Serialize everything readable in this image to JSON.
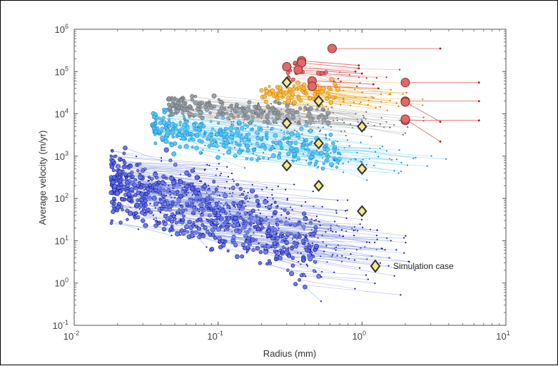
{
  "chart_data": {
    "type": "scatter",
    "title": "",
    "xlabel": "Radius (mm)",
    "ylabel": "Average velocity (m/yr)",
    "x_scale": "log",
    "y_scale": "log",
    "xlim": [
      0.01,
      10
    ],
    "ylim": [
      0.1,
      1000000
    ],
    "x_ticks": [
      {
        "value": 0.01,
        "base": "10",
        "exp": "-2"
      },
      {
        "value": 0.1,
        "base": "10",
        "exp": "-1"
      },
      {
        "value": 1,
        "base": "10",
        "exp": "0"
      },
      {
        "value": 10,
        "base": "10",
        "exp": "1"
      }
    ],
    "y_ticks": [
      {
        "value": 0.1,
        "base": "10",
        "exp": "-1"
      },
      {
        "value": 1,
        "base": "10",
        "exp": "0"
      },
      {
        "value": 10,
        "base": "10",
        "exp": "1"
      },
      {
        "value": 100,
        "base": "10",
        "exp": "2"
      },
      {
        "value": 1000,
        "base": "10",
        "exp": "3"
      },
      {
        "value": 10000,
        "base": "10",
        "exp": "4"
      },
      {
        "value": 100000,
        "base": "10",
        "exp": "5"
      },
      {
        "value": 1000000,
        "base": "10",
        "exp": "6"
      }
    ],
    "grid": false,
    "legend": {
      "position": "bottom-right",
      "entries": [
        {
          "label": "Simulation case",
          "marker": "diamond",
          "color": "#f2ea8c",
          "edge": "#333333"
        }
      ]
    },
    "point_clouds": [
      {
        "name": "blue",
        "color": "#1a1aa6",
        "fill": "#5a6fe0",
        "line": "#8f9ee8",
        "x_range": [
          0.018,
          0.5
        ],
        "logy_center_start": 2.4,
        "logy_slope": -1.1,
        "logy_spread": 1.2,
        "count": 700
      },
      {
        "name": "light-blue",
        "color": "#1d8fd6",
        "fill": "#4ec3f0",
        "line": "#7fd3f5",
        "x_range": [
          0.035,
          0.7
        ],
        "logy_center_start": 3.7,
        "logy_slope": -0.5,
        "logy_spread": 0.6,
        "count": 320
      },
      {
        "name": "gray",
        "color": "#6f6f6f",
        "fill": "#8a9aa6",
        "line": "#b0b0b0",
        "x_range": [
          0.045,
          0.6
        ],
        "logy_center_start": 4.2,
        "logy_slope": -0.2,
        "logy_spread": 0.4,
        "count": 200
      },
      {
        "name": "orange",
        "color": "#d97a00",
        "fill": "#f5c24a",
        "line": "#f0b030",
        "x_range": [
          0.2,
          0.7
        ],
        "logy_center_start": 4.5,
        "logy_slope": 0.0,
        "logy_spread": 0.35,
        "count": 90
      },
      {
        "name": "red",
        "color": "#9a2a2a",
        "fill": "#e26868",
        "line": "#e58a8a",
        "x_range": [
          0.3,
          0.6
        ],
        "logy_center_start": 5.0,
        "logy_slope": 0.0,
        "logy_spread": 0.3,
        "count": 18
      }
    ],
    "red_large_points": [
      {
        "x": 0.62,
        "y": 350000,
        "x_end": 3.5,
        "y_end": 350000
      },
      {
        "x": 0.38,
        "y": 180000,
        "x_end": 0.95,
        "y_end": 140000
      },
      {
        "x": 0.38,
        "y": 160000,
        "x_end": 0.95,
        "y_end": 120000
      },
      {
        "x": 0.3,
        "y": 130000,
        "x_end": 0.9,
        "y_end": 100000
      },
      {
        "x": 0.36,
        "y": 110000,
        "x_end": 1.0,
        "y_end": 90000
      },
      {
        "x": 0.45,
        "y": 60000,
        "x_end": 1.2,
        "y_end": 50000
      },
      {
        "x": 0.45,
        "y": 45000,
        "x_end": 1.3,
        "y_end": 40000
      },
      {
        "x": 2.0,
        "y": 55000,
        "x_end": 6.5,
        "y_end": 55000
      },
      {
        "x": 2.0,
        "y": 20000,
        "x_end": 6.5,
        "y_end": 20000
      },
      {
        "x": 2.0,
        "y": 19000,
        "x_end": 3.5,
        "y_end": 6500
      },
      {
        "x": 2.0,
        "y": 7000,
        "x_end": 6.5,
        "y_end": 7000
      },
      {
        "x": 2.0,
        "y": 7500,
        "x_end": 3.5,
        "y_end": 2200
      }
    ],
    "simulation_cases": [
      {
        "x": 0.3,
        "y": 55000
      },
      {
        "x": 0.3,
        "y": 6000
      },
      {
        "x": 0.3,
        "y": 600
      },
      {
        "x": 0.5,
        "y": 20000
      },
      {
        "x": 0.5,
        "y": 2000
      },
      {
        "x": 0.5,
        "y": 200
      },
      {
        "x": 1.0,
        "y": 5000
      },
      {
        "x": 1.0,
        "y": 500
      },
      {
        "x": 1.0,
        "y": 50
      }
    ]
  }
}
